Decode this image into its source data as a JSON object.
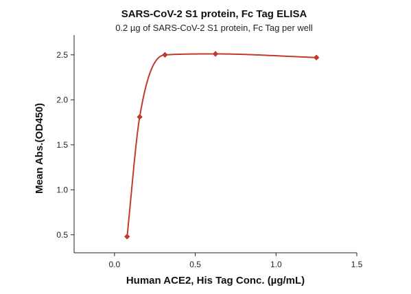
{
  "chart_data": {
    "type": "scatter",
    "title": "SARS-CoV-2 S1 protein, Fc Tag ELISA",
    "subtitle": "0.2 µg of SARS-CoV-2 S1 protein, Fc Tag per well",
    "xlabel": "Human ACE2, His Tag Conc. (µg/mL)",
    "ylabel": "Mean Abs.(OD450)",
    "xlim": [
      -0.25,
      1.5
    ],
    "ylim": [
      0.3,
      2.72
    ],
    "xticks": [
      0.0,
      0.5,
      1.0,
      1.5
    ],
    "xtick_labels": [
      "0.0",
      "0.5",
      "1.0",
      "1.5"
    ],
    "yticks": [
      0.5,
      1.0,
      1.5,
      2.0,
      2.5
    ],
    "ytick_labels": [
      "0.5",
      "1.0",
      "1.5",
      "2.0",
      "2.5"
    ],
    "grid": false,
    "series": [
      {
        "x": [
          0.078,
          0.156,
          0.3125,
          0.625,
          1.25
        ],
        "y": [
          0.48,
          1.81,
          2.5,
          2.51,
          2.47
        ],
        "color": "#c0392b",
        "marker": "diamond",
        "fit": "sigmoidal"
      }
    ]
  }
}
